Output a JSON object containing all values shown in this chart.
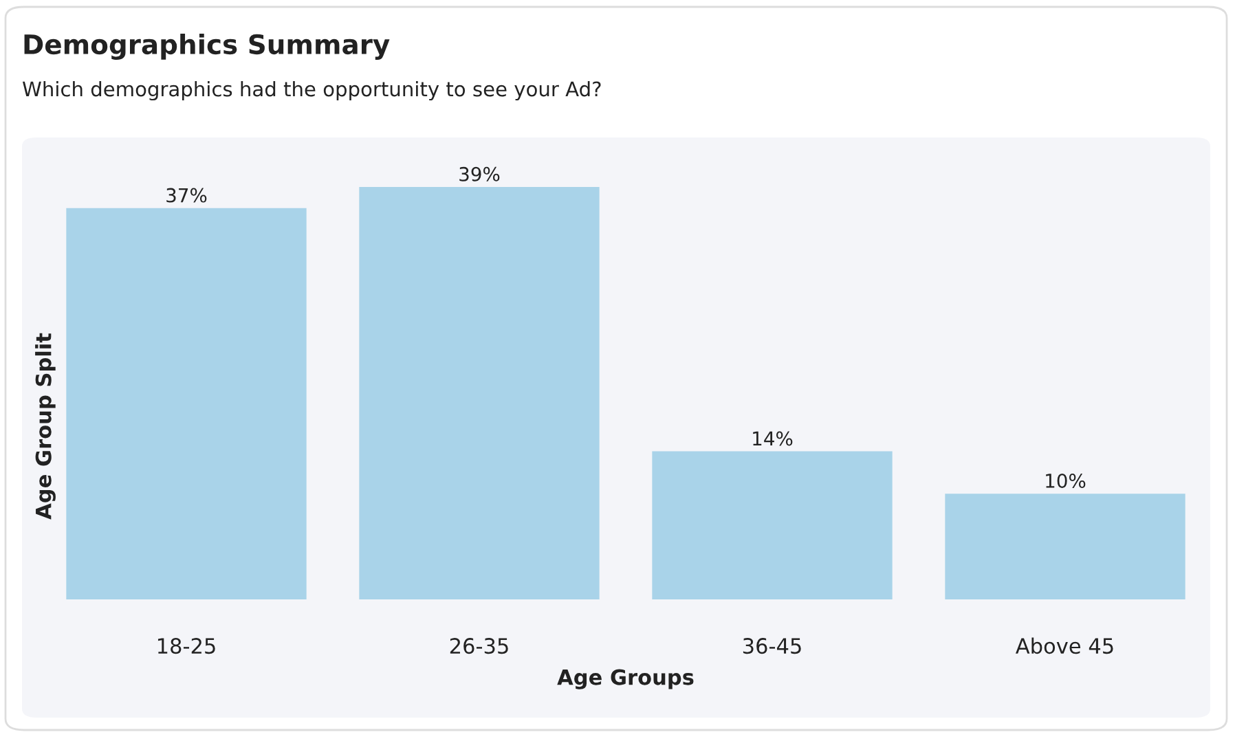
{
  "chart_data": {
    "type": "bar",
    "title": "Demographics Summary",
    "subtitle": "Which demographics had the opportunity to see your Ad?",
    "xlabel": "Age Groups",
    "ylabel": "Age Group Split",
    "categories": [
      "18-25",
      "26-35",
      "36-45",
      "Above 45"
    ],
    "values": [
      37,
      39,
      14,
      10
    ],
    "value_labels": [
      "37%",
      "39%",
      "14%",
      "10%"
    ],
    "color": "#a9d3e9",
    "grid": false,
    "tick_labels": "x"
  }
}
